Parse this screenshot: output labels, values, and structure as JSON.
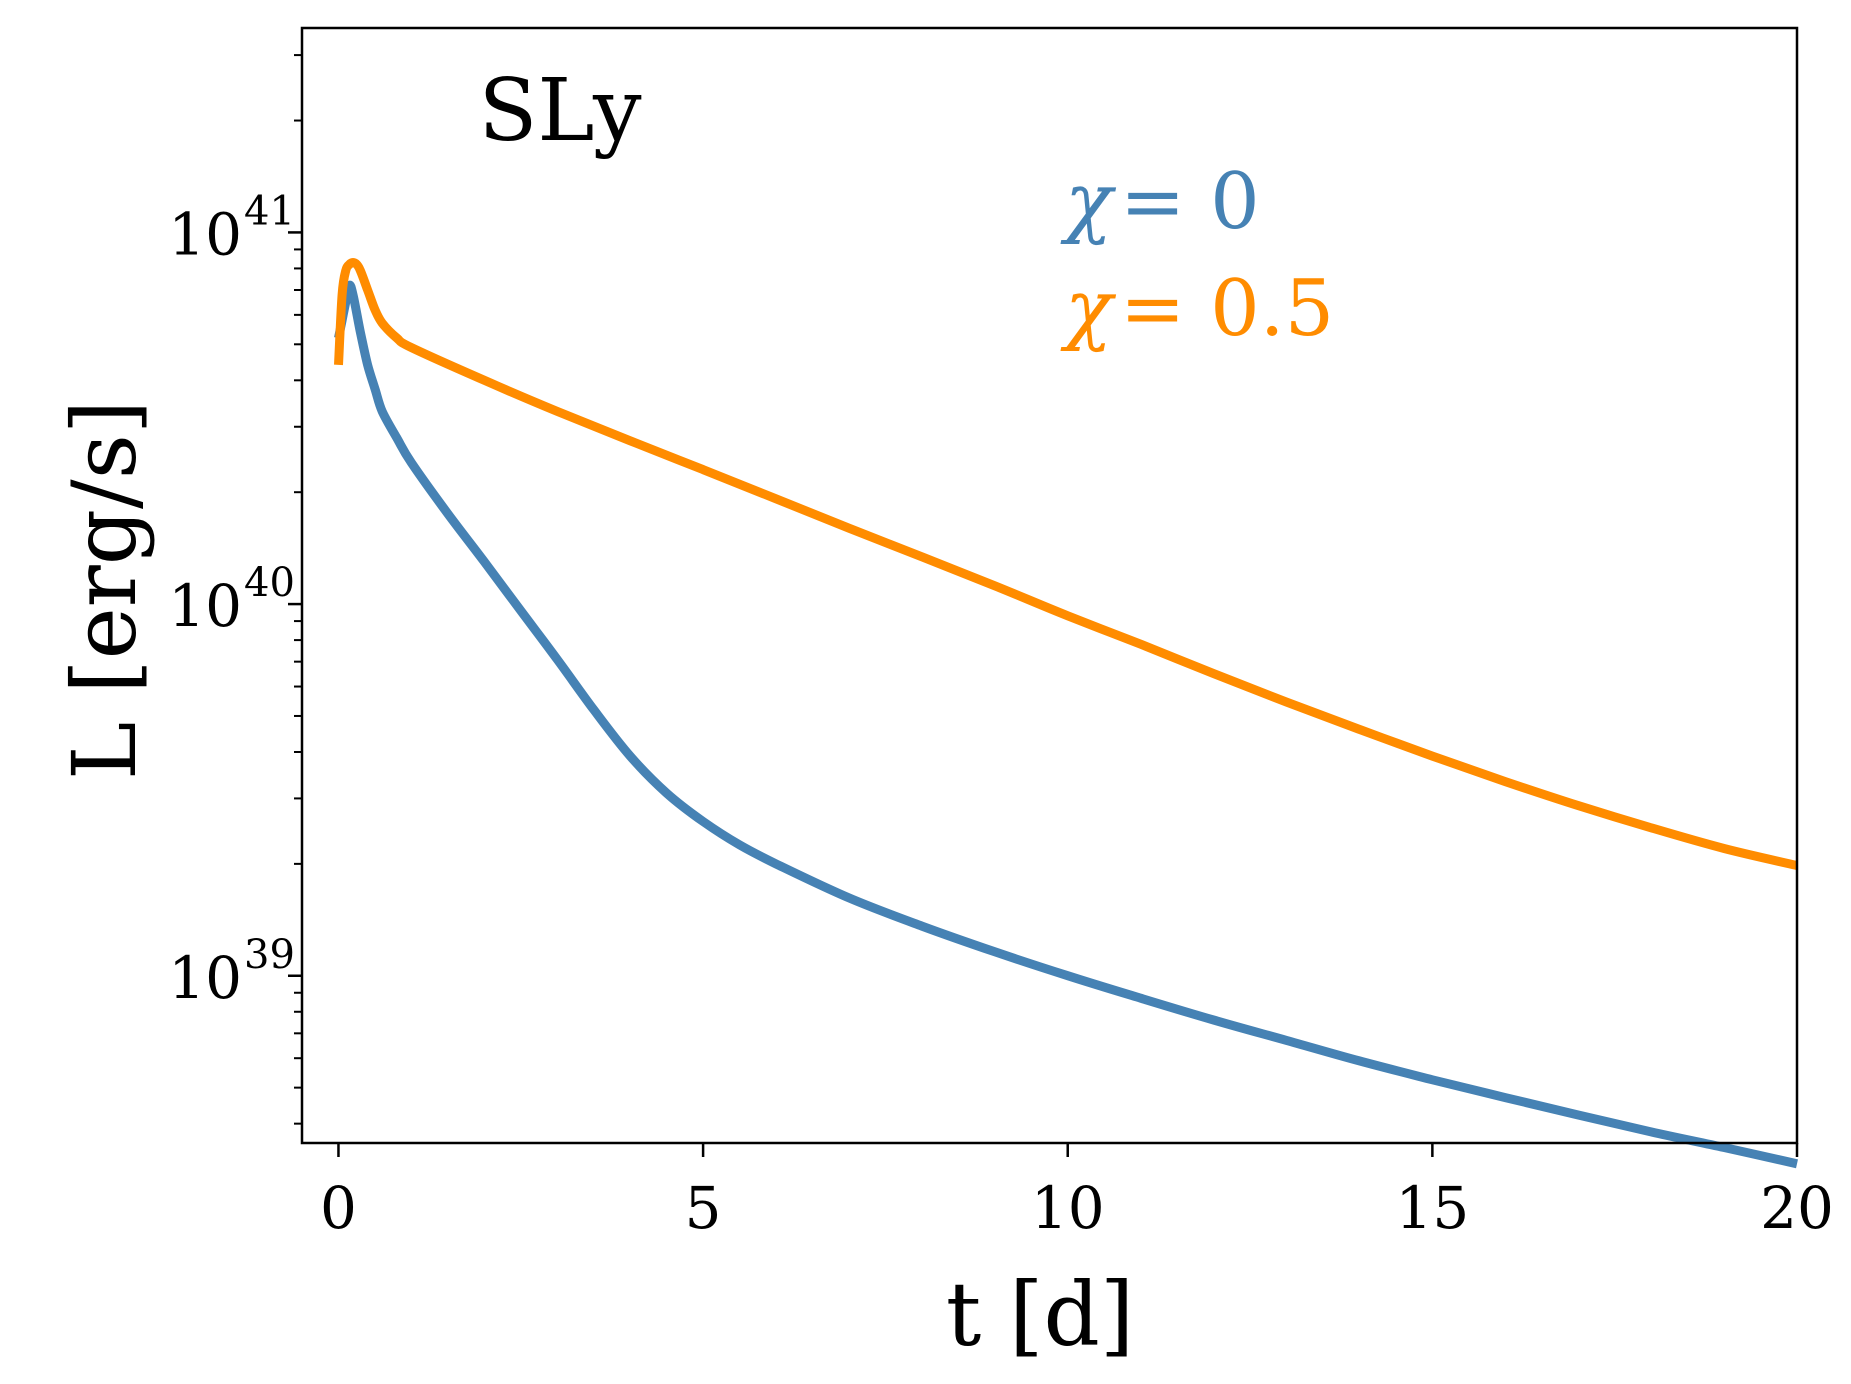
{
  "chart_data": {
    "type": "line",
    "title": "",
    "annotation": "SLy",
    "xlabel": "t [d]",
    "ylabel": "L [erg/s]",
    "xlim": [
      -0.5,
      20
    ],
    "ylim_log10": [
      38.55,
      41.55
    ],
    "yscale": "log",
    "x_ticks": [
      0,
      5,
      10,
      15,
      20
    ],
    "x_tick_labels": [
      "0",
      "5",
      "10",
      "15",
      "20"
    ],
    "y_major_exponents": [
      39,
      40,
      41
    ],
    "y_tick_base": "10",
    "y_tick_exponents": [
      "39",
      "40",
      "41"
    ],
    "grid": false,
    "legend": {
      "placement": "top-right",
      "entries": [
        {
          "symbol": "χ",
          "text": "= 0",
          "color": "#4682b4"
        },
        {
          "symbol": "χ",
          "text": "= 0.5",
          "color": "#ff8c00"
        }
      ]
    },
    "series": [
      {
        "color": "#4682b4",
        "label": "χ= 0",
        "x": [
          0,
          0.05,
          0.1,
          0.15,
          0.2,
          0.3,
          0.4,
          0.5,
          0.6,
          0.8,
          1,
          1.5,
          2,
          2.5,
          3,
          3.5,
          4,
          4.5,
          5,
          5.5,
          6,
          7,
          8,
          9,
          10,
          11,
          12,
          13,
          14,
          15,
          16,
          17,
          18,
          19,
          20
        ],
        "y": [
          5.2e+40,
          5.8e+40,
          6.5e+40,
          7.2e+40,
          6.8e+40,
          5.4e+40,
          4.4e+40,
          3.8e+40,
          3.3e+40,
          2.8e+40,
          2.4e+40,
          1.75e+40,
          1.3e+40,
          9.6e+39,
          7.1e+39,
          5.2e+39,
          3.9e+39,
          3.1e+39,
          2.6e+39,
          2.25e+39,
          2e+39,
          1.62e+39,
          1.36e+39,
          1.16e+39,
          1e+39,
          8.7e+38,
          7.6e+38,
          6.7e+38,
          5.9e+38,
          5.25e+38,
          4.7e+38,
          4.22e+38,
          3.8e+38,
          3.45e+38,
          3.12e+38
        ]
      },
      {
        "color": "#ff8c00",
        "label": "χ= 0.5",
        "x": [
          0,
          0.05,
          0.1,
          0.15,
          0.2,
          0.25,
          0.3,
          0.4,
          0.5,
          0.6,
          0.8,
          1,
          2,
          3,
          4,
          5,
          6,
          7,
          8,
          9,
          10,
          11,
          12,
          13,
          14,
          15,
          16,
          17,
          18,
          19,
          20
        ],
        "y": [
          4.4e+40,
          6.8e+40,
          7.9e+40,
          8.2e+40,
          8.3e+40,
          8.2e+40,
          7.9e+40,
          7e+40,
          6.2e+40,
          5.7e+40,
          5.2e+40,
          4.9e+40,
          4e+40,
          3.3e+40,
          2.75e+40,
          2.3e+40,
          1.92e+40,
          1.6e+40,
          1.34e+40,
          1.12e+40,
          9.3e+39,
          7.8e+39,
          6.5e+39,
          5.45e+39,
          4.6e+39,
          3.9e+39,
          3.33e+39,
          2.87e+39,
          2.5e+39,
          2.2e+39,
          1.98e+39
        ]
      }
    ]
  }
}
